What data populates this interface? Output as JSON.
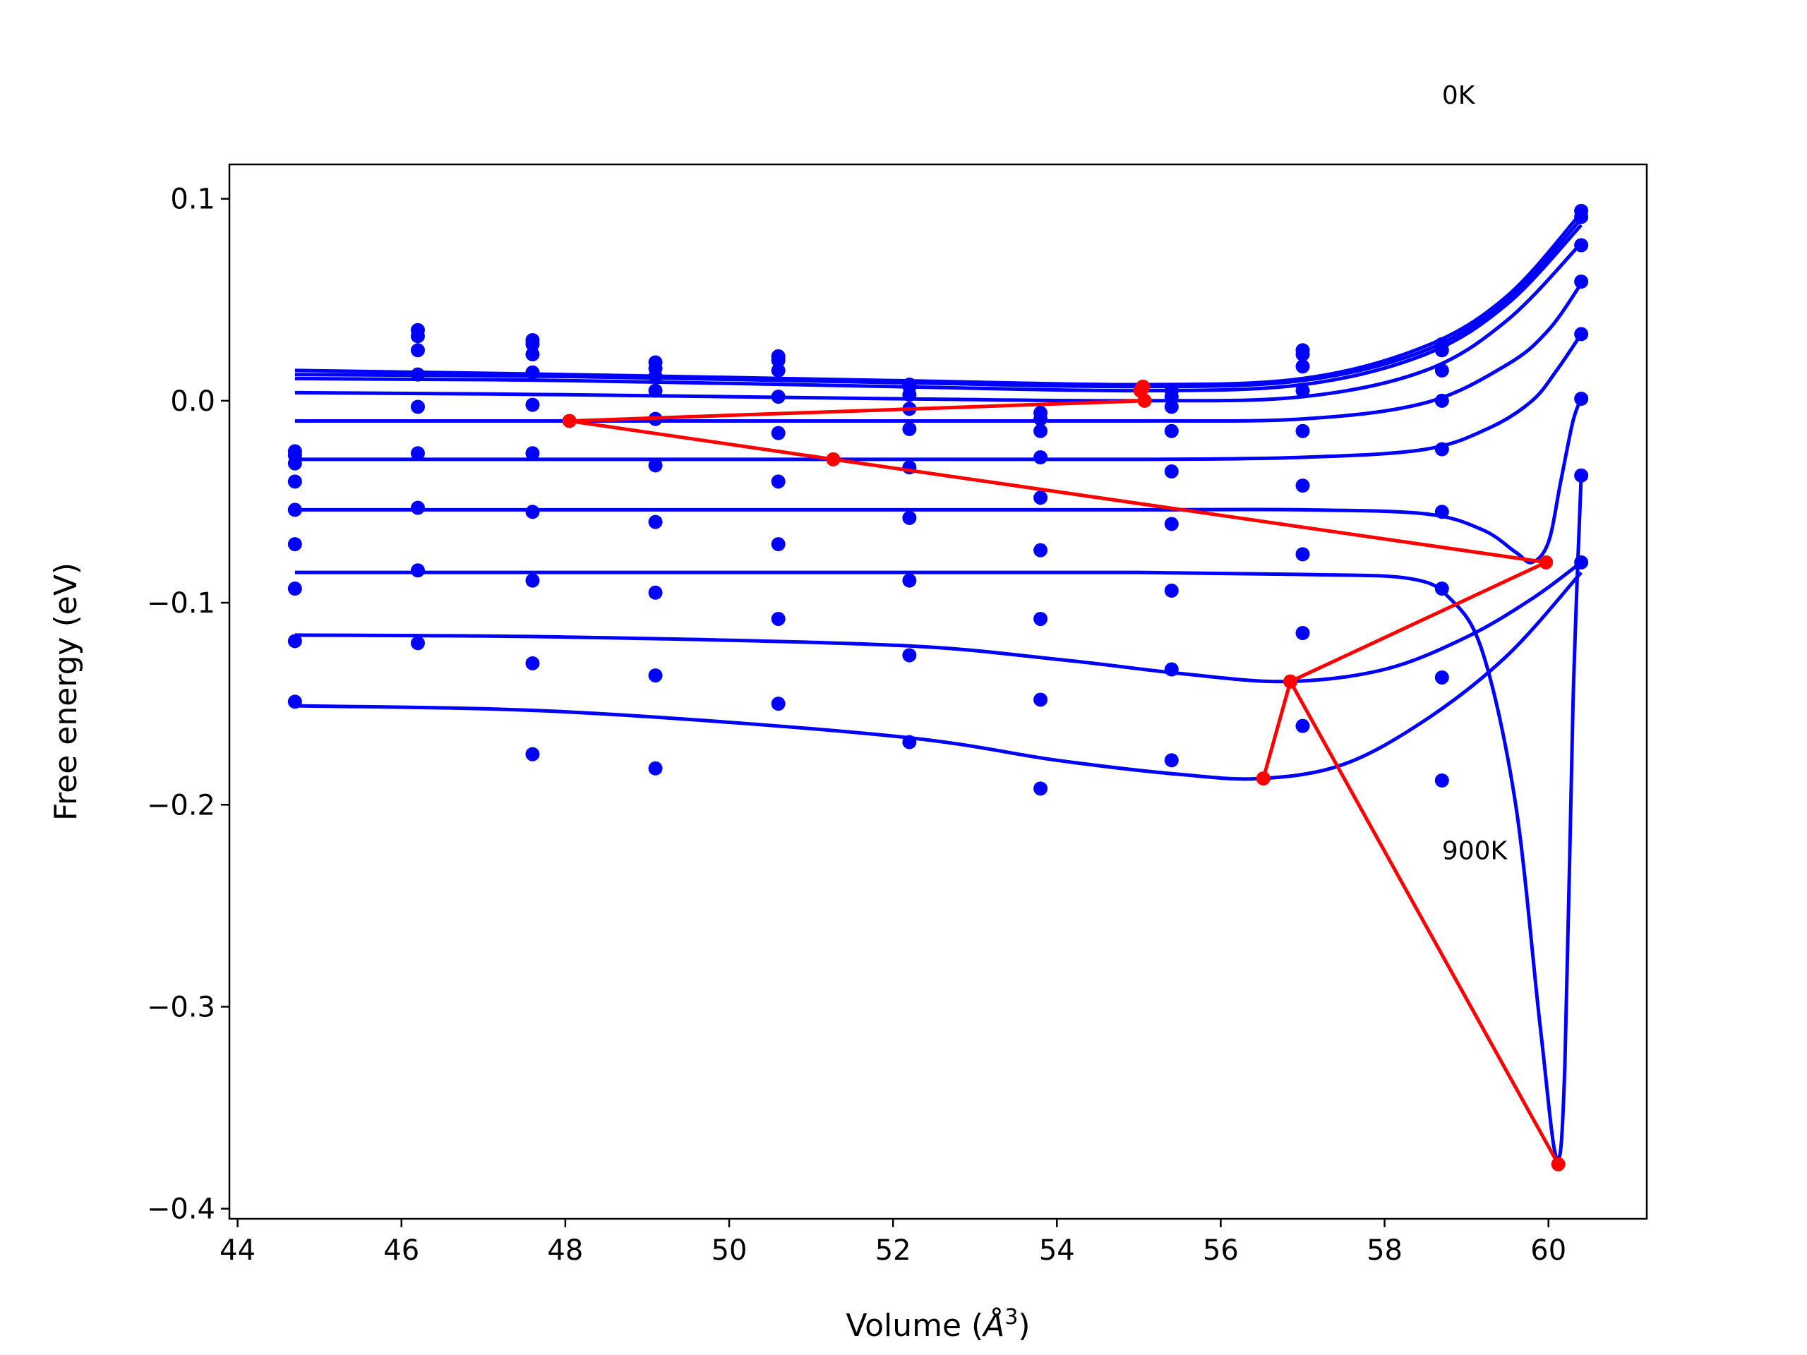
{
  "chart_data": {
    "type": "scatter",
    "title": "",
    "xlabel": "Volume (",
    "xlabel_unit": "Å",
    "xlabel_sup": "3",
    "xlabel_close": ")",
    "ylabel": "Free energy (eV)",
    "xlim": [
      43.9,
      61.2
    ],
    "ylim": [
      -0.405,
      0.117
    ],
    "x_ticks": [
      44,
      46,
      48,
      50,
      52,
      54,
      56,
      58,
      60
    ],
    "x_tick_labels": [
      "44",
      "46",
      "48",
      "50",
      "52",
      "54",
      "56",
      "58",
      "60"
    ],
    "y_ticks": [
      0.1,
      0.0,
      -0.1,
      -0.2,
      -0.3,
      -0.4
    ],
    "y_tick_labels": [
      "0.1",
      "0.0",
      "−0.1",
      "−0.2",
      "−0.3",
      "−0.4"
    ],
    "grid": false,
    "legend": "none",
    "annotations": [
      {
        "text": "0K",
        "x": 58.7,
        "y": 0.147
      },
      {
        "text": "900K",
        "x": 58.7,
        "y": -0.227
      }
    ],
    "colors": {
      "points": "#0000ff",
      "fits": "#0000ff",
      "minima": "#ff0000"
    },
    "scatter_points": [
      {
        "x": 44.7,
        "y": [
          -0.025,
          -0.027,
          -0.031,
          -0.04,
          -0.054,
          -0.071,
          -0.093,
          -0.119,
          -0.149
        ]
      },
      {
        "x": 46.2,
        "y": [
          0.035,
          0.032,
          0.025,
          0.013,
          -0.003,
          -0.026,
          -0.053,
          -0.084,
          -0.12
        ]
      },
      {
        "x": 47.6,
        "y": [
          0.03,
          0.028,
          0.023,
          0.014,
          -0.002,
          -0.026,
          -0.055,
          -0.089,
          -0.13,
          -0.175
        ]
      },
      {
        "x": 49.1,
        "y": [
          0.019,
          0.016,
          0.012,
          0.005,
          -0.009,
          -0.032,
          -0.06,
          -0.095,
          -0.136,
          -0.182
        ]
      },
      {
        "x": 50.6,
        "y": [
          0.022,
          0.02,
          0.015,
          0.002,
          -0.016,
          -0.04,
          -0.071,
          -0.108,
          -0.15
        ]
      },
      {
        "x": 52.2,
        "y": [
          0.008,
          0.007,
          0.003,
          -0.004,
          -0.014,
          -0.033,
          -0.058,
          -0.089,
          -0.126,
          -0.169
        ]
      },
      {
        "x": 53.8,
        "y": [
          -0.006,
          -0.009,
          -0.015,
          -0.028,
          -0.048,
          -0.074,
          -0.108,
          -0.148,
          -0.192
        ]
      },
      {
        "x": 55.4,
        "y": [
          0.005,
          0.002,
          -0.003,
          -0.015,
          -0.035,
          -0.061,
          -0.094,
          -0.133,
          -0.178
        ]
      },
      {
        "x": 57.0,
        "y": [
          0.025,
          0.023,
          0.017,
          0.005,
          -0.015,
          -0.042,
          -0.076,
          -0.115,
          -0.161
        ]
      },
      {
        "x": 58.7,
        "y": [
          0.028,
          0.025,
          0.015,
          0.0,
          -0.024,
          -0.055,
          -0.093,
          -0.137,
          -0.188
        ]
      },
      {
        "x": 60.4,
        "y": [
          0.094,
          0.091,
          0.077,
          0.059,
          0.033,
          0.001,
          -0.037,
          -0.08
        ]
      }
    ],
    "fit_curves": [
      {
        "x": [
          44.7,
          48,
          52,
          55,
          57,
          58.5,
          59.5,
          60.4
        ],
        "y": [
          0.015,
          0.013,
          0.01,
          0.008,
          0.011,
          0.027,
          0.052,
          0.093
        ]
      },
      {
        "x": [
          44.7,
          48,
          52,
          55,
          57,
          58.5,
          59.5,
          60.4
        ],
        "y": [
          0.013,
          0.012,
          0.009,
          0.007,
          0.01,
          0.025,
          0.05,
          0.09
        ]
      },
      {
        "x": [
          44.7,
          48,
          52,
          55,
          57,
          58.5,
          59.5,
          60.4
        ],
        "y": [
          0.011,
          0.01,
          0.007,
          0.005,
          0.008,
          0.023,
          0.048,
          0.087
        ]
      },
      {
        "x": [
          44.7,
          48,
          52,
          55,
          57,
          58.5,
          59.5,
          60.4
        ],
        "y": [
          0.004,
          0.003,
          0.001,
          0.0,
          0.002,
          0.015,
          0.04,
          0.078
        ]
      },
      {
        "x": [
          44.7,
          48,
          52,
          55,
          57,
          58.5,
          59.5,
          60.0,
          60.4
        ],
        "y": [
          -0.01,
          -0.01,
          -0.01,
          -0.01,
          -0.009,
          -0.001,
          0.018,
          0.035,
          0.058
        ]
      },
      {
        "x": [
          44.7,
          48,
          52,
          55,
          57,
          58.5,
          59.3,
          59.8,
          60.1,
          60.4
        ],
        "y": [
          -0.029,
          -0.029,
          -0.029,
          -0.029,
          -0.028,
          -0.024,
          -0.013,
          0.0,
          0.015,
          0.033
        ]
      },
      {
        "x": [
          44.7,
          48,
          52,
          55,
          57,
          58.5,
          59.2,
          59.6,
          59.8,
          60.0,
          60.15,
          60.3,
          60.4
        ],
        "y": [
          -0.054,
          -0.054,
          -0.054,
          -0.054,
          -0.054,
          -0.056,
          -0.064,
          -0.075,
          -0.08,
          -0.07,
          -0.04,
          -0.01,
          0.001
        ]
      },
      {
        "x": [
          44.7,
          48,
          52,
          55,
          57,
          58.3,
          58.8,
          59.2,
          59.6,
          59.9,
          60.1,
          60.2,
          60.3,
          60.4
        ],
        "y": [
          -0.085,
          -0.085,
          -0.085,
          -0.085,
          -0.086,
          -0.088,
          -0.098,
          -0.125,
          -0.2,
          -0.31,
          -0.375,
          -0.33,
          -0.15,
          -0.037
        ]
      },
      {
        "x": [
          44.7,
          48,
          52,
          54,
          55.5,
          56.8,
          58,
          59,
          59.8,
          60.4
        ],
        "y": [
          -0.116,
          -0.117,
          -0.121,
          -0.128,
          -0.135,
          -0.139,
          -0.133,
          -0.117,
          -0.098,
          -0.08
        ]
      },
      {
        "x": [
          44.7,
          48,
          52,
          54,
          55.5,
          56.5,
          57.5,
          58.5,
          59.5,
          60.4
        ],
        "y": [
          -0.151,
          -0.154,
          -0.166,
          -0.178,
          -0.185,
          -0.187,
          -0.18,
          -0.158,
          -0.126,
          -0.085
        ]
      }
    ],
    "minima_path": {
      "x": [
        55.02,
        55.05,
        55.04,
        55.07,
        48.05,
        51.27,
        59.97,
        56.85,
        56.52,
        56.85,
        60.12
      ],
      "y": [
        0.005,
        0.007,
        0.006,
        0.0,
        -0.01,
        -0.029,
        -0.08,
        -0.139,
        -0.187,
        -0.139,
        -0.378
      ]
    }
  }
}
